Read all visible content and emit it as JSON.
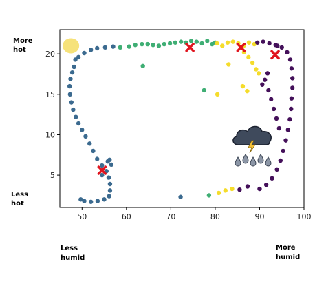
{
  "chart_data": {
    "type": "scatter",
    "xlim": [
      45,
      100
    ],
    "ylim": [
      1,
      23
    ],
    "x_ticks": [
      50,
      60,
      70,
      80,
      90,
      100
    ],
    "y_ticks": [
      5,
      10,
      15,
      20
    ],
    "grid": false,
    "annotations": {
      "y_top": [
        "More",
        "hot"
      ],
      "y_bottom": [
        "Less",
        "hot"
      ],
      "x_left": [
        "Less",
        "humid"
      ],
      "x_right": [
        "More",
        "humid"
      ]
    },
    "series": [
      {
        "color": "#3b6a8f",
        "points": [
          [
            48.5,
            19.3
          ],
          [
            48.2,
            18.4
          ],
          [
            47.8,
            17.7
          ],
          [
            47.4,
            16.9
          ],
          [
            47.2,
            16.0
          ],
          [
            47.3,
            15.0
          ],
          [
            47.6,
            14.0
          ],
          [
            48.0,
            13.1
          ],
          [
            48.6,
            12.2
          ],
          [
            49.2,
            11.4
          ],
          [
            50.0,
            10.6
          ],
          [
            50.8,
            9.8
          ],
          [
            51.7,
            8.9
          ],
          [
            52.5,
            8.0
          ],
          [
            53.4,
            7.0
          ],
          [
            54.5,
            6.2
          ],
          [
            55.5,
            5.5
          ],
          [
            56.0,
            4.7
          ],
          [
            56.3,
            3.9
          ],
          [
            56.3,
            3.1
          ],
          [
            56.1,
            2.4
          ],
          [
            55.0,
            2.0
          ],
          [
            53.5,
            1.8
          ],
          [
            52.0,
            1.7
          ],
          [
            50.5,
            1.8
          ],
          [
            49.7,
            2.0
          ],
          [
            49.2,
            19.6
          ],
          [
            50.5,
            20.1
          ],
          [
            52.0,
            20.5
          ],
          [
            53.4,
            20.7
          ],
          [
            55.2,
            20.8
          ],
          [
            57.0,
            20.9
          ],
          [
            55.8,
            6.7
          ],
          [
            56.2,
            6.9
          ],
          [
            56.6,
            6.3
          ],
          [
            54.5,
            5.0
          ],
          [
            72.2,
            2.3
          ]
        ]
      },
      {
        "color": "#3fae74",
        "points": [
          [
            58.6,
            20.8
          ],
          [
            60.6,
            20.9
          ],
          [
            62.0,
            21.1
          ],
          [
            63.5,
            21.2
          ],
          [
            64.8,
            21.2
          ],
          [
            66.0,
            21.1
          ],
          [
            67.3,
            21.0
          ],
          [
            68.5,
            21.2
          ],
          [
            69.8,
            21.3
          ],
          [
            71.0,
            21.4
          ],
          [
            72.3,
            21.5
          ],
          [
            73.4,
            21.4
          ],
          [
            74.6,
            21.6
          ],
          [
            75.8,
            21.5
          ],
          [
            77.0,
            21.3
          ],
          [
            78.2,
            21.6
          ],
          [
            79.3,
            21.2
          ],
          [
            63.7,
            18.5
          ],
          [
            77.5,
            15.5
          ],
          [
            78.6,
            2.5
          ],
          [
            80.0,
            21.4
          ]
        ]
      },
      {
        "color": "#f5dc2b",
        "points": [
          [
            80.4,
            21.3
          ],
          [
            81.6,
            21.0
          ],
          [
            82.8,
            21.4
          ],
          [
            84.0,
            21.5
          ],
          [
            85.2,
            21.3
          ],
          [
            86.4,
            21.0
          ],
          [
            87.6,
            21.4
          ],
          [
            88.8,
            21.2
          ],
          [
            86.5,
            20.2
          ],
          [
            87.5,
            19.6
          ],
          [
            88.4,
            18.9
          ],
          [
            89.2,
            18.1
          ],
          [
            89.8,
            17.6
          ],
          [
            83.0,
            18.7
          ],
          [
            80.5,
            15.0
          ],
          [
            86.2,
            16.0
          ],
          [
            87.2,
            15.4
          ],
          [
            80.8,
            2.8
          ],
          [
            82.3,
            3.1
          ],
          [
            83.8,
            3.3
          ]
        ]
      },
      {
        "color": "#44105a",
        "points": [
          [
            89.5,
            21.4
          ],
          [
            90.8,
            21.5
          ],
          [
            92.2,
            21.3
          ],
          [
            93.6,
            21.1
          ],
          [
            95.0,
            20.8
          ],
          [
            96.2,
            20.2
          ],
          [
            96.9,
            19.3
          ],
          [
            97.2,
            18.2
          ],
          [
            97.4,
            17.0
          ],
          [
            97.4,
            15.8
          ],
          [
            97.2,
            14.5
          ],
          [
            97.1,
            13.2
          ],
          [
            96.8,
            11.9
          ],
          [
            96.4,
            10.6
          ],
          [
            95.9,
            9.3
          ],
          [
            95.3,
            8.0
          ],
          [
            94.7,
            6.8
          ],
          [
            93.9,
            5.7
          ],
          [
            92.8,
            4.6
          ],
          [
            91.5,
            3.8
          ],
          [
            90.0,
            3.3
          ],
          [
            85.5,
            3.2
          ],
          [
            87.3,
            3.6
          ],
          [
            94.0,
            21.0
          ],
          [
            91.2,
            16.8
          ],
          [
            92.0,
            15.5
          ],
          [
            91.8,
            17.6
          ],
          [
            90.6,
            16.2
          ],
          [
            92.6,
            14.4
          ],
          [
            93.2,
            13.2
          ],
          [
            93.8,
            12.0
          ],
          [
            94.4,
            10.8
          ]
        ]
      }
    ],
    "highlighted_points": [
      [
        54.5,
        5.6
      ],
      [
        74.3,
        20.8
      ],
      [
        85.8,
        20.8
      ],
      [
        93.5,
        19.9
      ]
    ],
    "blob": {
      "x": 47.5,
      "y": 21.0,
      "color": "#f6e27a"
    },
    "icon": "storm-cloud-rain-icon"
  }
}
